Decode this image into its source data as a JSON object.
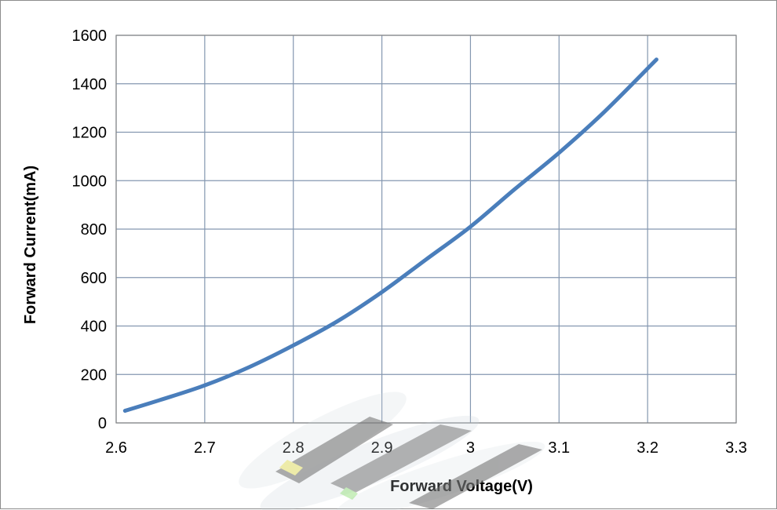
{
  "chart_data": {
    "type": "line",
    "title": "",
    "xlabel": "Forward Voltage(V)",
    "ylabel": "Forward Current(mA)",
    "xlim": [
      2.6,
      3.3
    ],
    "ylim": [
      0,
      1600
    ],
    "x_ticks": [
      "2.6",
      "2.7",
      "2.8",
      "2.9",
      "3",
      "3.1",
      "3.2",
      "3.3"
    ],
    "y_ticks": [
      "0",
      "200",
      "400",
      "600",
      "800",
      "1000",
      "1200",
      "1400",
      "1600"
    ],
    "grid": true,
    "legend": "none",
    "series": [
      {
        "color": "#4a7ebb",
        "x": [
          2.61,
          2.65,
          2.7,
          2.75,
          2.8,
          2.85,
          2.9,
          2.95,
          3.0,
          3.05,
          3.1,
          3.15,
          3.21
        ],
        "y": [
          50,
          95,
          155,
          230,
          320,
          420,
          540,
          675,
          810,
          965,
          1115,
          1280,
          1500
        ]
      }
    ],
    "colors": {
      "grid": "#8497b0",
      "plot_border": "#868686",
      "line": "#4a7ebb"
    }
  }
}
